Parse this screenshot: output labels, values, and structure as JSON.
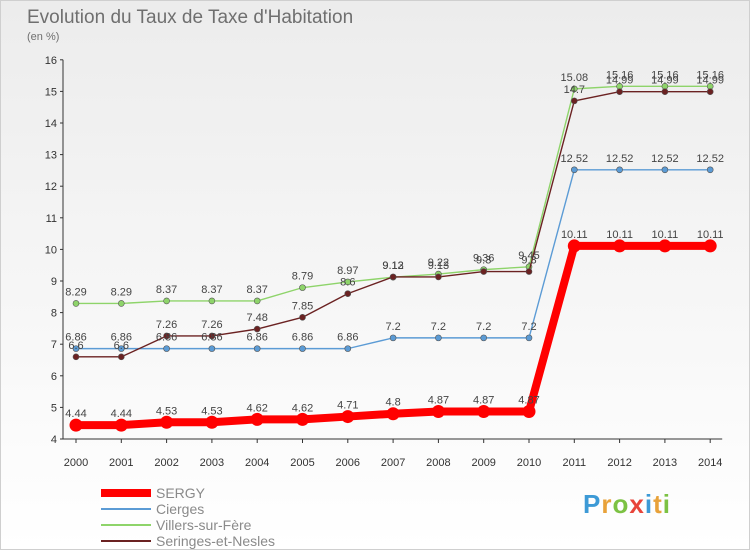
{
  "header": {
    "title": "Evolution du Taux de Taxe d'Habitation",
    "unit": "(en %)"
  },
  "logo": {
    "text": "Proxiti",
    "colors": [
      "#3d9ad6",
      "#e8a23a",
      "#7cc243",
      "#e8443a",
      "#3d9ad6",
      "#e8a23a",
      "#7cc243"
    ]
  },
  "chart_data": {
    "type": "line",
    "x": [
      "2000",
      "2001",
      "2002",
      "2003",
      "2004",
      "2005",
      "2006",
      "2007",
      "2008",
      "2009",
      "2010",
      "2011",
      "2012",
      "2013",
      "2014"
    ],
    "ylim": [
      4,
      16
    ],
    "yticks": [
      4,
      5,
      6,
      7,
      8,
      9,
      10,
      11,
      12,
      13,
      14,
      15,
      16
    ],
    "grid": false,
    "legend_position": "bottom-left",
    "series": [
      {
        "name": "SERGY",
        "color": "#ff0000",
        "emphasis": true,
        "values": [
          4.44,
          4.44,
          4.53,
          4.53,
          4.62,
          4.62,
          4.71,
          4.8,
          4.87,
          4.87,
          4.87,
          10.11,
          10.11,
          10.11,
          10.11
        ],
        "labels": [
          "4.44",
          "4.44",
          "4.53",
          "4.53",
          "4.62",
          "4.62",
          "4.71",
          "4.8",
          "4.87",
          "4.87",
          "4.87",
          "10.11",
          "10.11",
          "10.11",
          "10.11"
        ]
      },
      {
        "name": "Cierges",
        "color": "#5b9bd5",
        "values": [
          6.86,
          6.86,
          6.86,
          6.86,
          6.86,
          6.86,
          6.86,
          7.2,
          7.2,
          7.2,
          7.2,
          12.52,
          12.52,
          12.52,
          12.52
        ],
        "labels": [
          "6.86",
          "6.86",
          "6.86",
          "6.86",
          "6.86",
          "6.86",
          "6.86",
          "7.2",
          "7.2",
          "7.2",
          "7.2",
          "12.52",
          "12.52",
          "12.52",
          "12.52"
        ]
      },
      {
        "name": "Villers-sur-Fère",
        "color": "#8ed46a",
        "values": [
          8.29,
          8.29,
          8.37,
          8.37,
          8.37,
          8.79,
          8.97,
          9.12,
          9.22,
          9.36,
          9.45,
          15.08,
          15.16,
          15.16,
          15.16
        ],
        "labels": [
          "8.29",
          "8.29",
          "8.37",
          "8.37",
          "8.37",
          "8.79",
          "8.97",
          "9.12",
          "9.22",
          "9.36",
          "9.45",
          "15.08",
          "15.16",
          "15.16",
          "15.16"
        ]
      },
      {
        "name": "Seringes-et-Nesles",
        "color": "#6b2222",
        "values": [
          6.6,
          6.6,
          7.26,
          7.26,
          7.48,
          7.85,
          8.6,
          9.13,
          9.13,
          9.3,
          9.3,
          14.7,
          14.99,
          14.99,
          14.99
        ],
        "labels": [
          "6.6",
          "6.6",
          "7.26",
          "7.26",
          "7.48",
          "7.85",
          "8.6",
          "9.13",
          "9.13",
          "9.3",
          "9.3",
          "14.7",
          "14.99",
          "14.99",
          "14.99"
        ]
      }
    ]
  }
}
